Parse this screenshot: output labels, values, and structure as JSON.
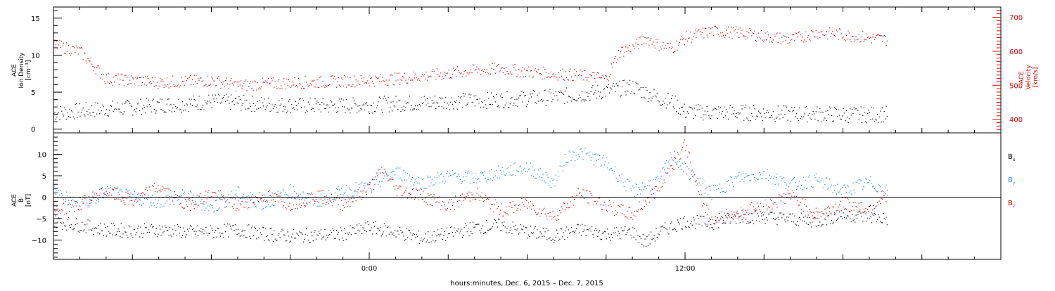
{
  "chart_data": [
    {
      "type": "scatter",
      "panel": "top",
      "left_axis": {
        "label_lines": [
          "ACE",
          "Ion Density",
          "[cm⁻³]"
        ],
        "ylim": [
          -0.5,
          16.5
        ],
        "ticks": [
          0,
          5,
          10,
          15
        ],
        "tick_labels": [
          "0",
          "5",
          "10",
          "15"
        ],
        "color": "#000000"
      },
      "right_axis": {
        "label_lines": [
          "ACE",
          "Velocity",
          "[km/s]"
        ],
        "ylim": [
          360,
          730
        ],
        "ticks": [
          400,
          500,
          600,
          700
        ],
        "tick_labels": [
          "400",
          "500",
          "600",
          "700"
        ],
        "color": "#dd0000"
      },
      "series": [
        {
          "axis": "left",
          "color": "#000000",
          "values": [
            [
              -12.0,
              2.2
            ],
            [
              -11.0,
              2.5
            ],
            [
              -10.0,
              2.8
            ],
            [
              -9.0,
              3.0
            ],
            [
              -8.0,
              3.3
            ],
            [
              -7.0,
              3.5
            ],
            [
              -6.0,
              3.8
            ],
            [
              -5.0,
              3.6
            ],
            [
              -4.0,
              3.4
            ],
            [
              -3.0,
              3.3
            ],
            [
              -2.0,
              3.2
            ],
            [
              -1.0,
              3.2
            ],
            [
              0.0,
              3.3
            ],
            [
              1.0,
              3.5
            ],
            [
              2.0,
              3.6
            ],
            [
              3.0,
              3.8
            ],
            [
              4.0,
              3.9
            ],
            [
              5.0,
              4.0
            ],
            [
              6.0,
              4.2
            ],
            [
              7.0,
              4.4
            ],
            [
              8.0,
              4.7
            ],
            [
              9.0,
              5.2
            ],
            [
              10.0,
              5.8
            ],
            [
              10.5,
              5.0
            ],
            [
              11.0,
              4.2
            ],
            [
              11.5,
              3.8
            ],
            [
              12.0,
              2.4
            ],
            [
              13.0,
              2.3
            ],
            [
              14.0,
              2.3
            ],
            [
              15.0,
              2.2
            ],
            [
              16.0,
              2.1
            ],
            [
              17.0,
              2.1
            ],
            [
              18.0,
              2.0
            ],
            [
              19.0,
              2.0
            ],
            [
              19.7,
              2.1
            ]
          ]
        },
        {
          "axis": "right",
          "color": "#dd0000",
          "values": [
            [
              -12.0,
              620
            ],
            [
              -11.0,
              600
            ],
            [
              -10.0,
              520
            ],
            [
              -9.0,
              515
            ],
            [
              -8.0,
              510
            ],
            [
              -7.0,
              512
            ],
            [
              -6.0,
              515
            ],
            [
              -5.0,
              500
            ],
            [
              -4.0,
              505
            ],
            [
              -3.0,
              508
            ],
            [
              -2.0,
              510
            ],
            [
              -1.0,
              513
            ],
            [
              0.0,
              515
            ],
            [
              1.0,
              520
            ],
            [
              2.0,
              528
            ],
            [
              3.0,
              535
            ],
            [
              4.0,
              545
            ],
            [
              5.0,
              550
            ],
            [
              6.0,
              540
            ],
            [
              7.0,
              535
            ],
            [
              8.0,
              530
            ],
            [
              9.0,
              520
            ],
            [
              9.5,
              600
            ],
            [
              10.0,
              610
            ],
            [
              10.5,
              640
            ],
            [
              11.0,
              620
            ],
            [
              11.5,
              610
            ],
            [
              12.0,
              640
            ],
            [
              13.0,
              660
            ],
            [
              14.0,
              655
            ],
            [
              15.0,
              645
            ],
            [
              16.0,
              635
            ],
            [
              17.0,
              655
            ],
            [
              18.0,
              650
            ],
            [
              19.0,
              640
            ],
            [
              19.7,
              635
            ]
          ]
        }
      ]
    },
    {
      "type": "scatter",
      "panel": "bottom",
      "left_axis": {
        "label_lines": [
          "ACE",
          "B",
          "[nT]"
        ],
        "ylim": [
          -14.5,
          15
        ],
        "ticks": [
          -10,
          -5,
          0,
          5,
          10
        ],
        "tick_labels": [
          "−10",
          "−5",
          "0",
          "5",
          "10"
        ],
        "color": "#000000"
      },
      "zero_line": true,
      "legend_position": "right",
      "series": [
        {
          "name": "B",
          "subscript": "x",
          "color": "#000000",
          "values": [
            [
              -12.0,
              -5.5
            ],
            [
              -11.0,
              -6.5
            ],
            [
              -10.0,
              -7.5
            ],
            [
              -9.0,
              -7.8
            ],
            [
              -8.0,
              -7.5
            ],
            [
              -7.0,
              -8.0
            ],
            [
              -6.0,
              -8.0
            ],
            [
              -5.0,
              -7.5
            ],
            [
              -4.0,
              -8.5
            ],
            [
              -3.0,
              -9.0
            ],
            [
              -2.0,
              -8.8
            ],
            [
              -1.0,
              -8.5
            ],
            [
              0.0,
              -7.0
            ],
            [
              1.0,
              -8.0
            ],
            [
              2.0,
              -9.5
            ],
            [
              3.0,
              -8.5
            ],
            [
              4.0,
              -7.0
            ],
            [
              5.0,
              -6.5
            ],
            [
              6.0,
              -8.0
            ],
            [
              7.0,
              -9.0
            ],
            [
              8.0,
              -7.5
            ],
            [
              9.0,
              -8.5
            ],
            [
              10.0,
              -8.0
            ],
            [
              10.5,
              -10.5
            ],
            [
              11.0,
              -8.0
            ],
            [
              12.0,
              -5.5
            ],
            [
              13.0,
              -6.0
            ],
            [
              14.0,
              -4.5
            ],
            [
              15.0,
              -4.5
            ],
            [
              16.0,
              -5.0
            ],
            [
              17.0,
              -5.5
            ],
            [
              18.0,
              -4.0
            ],
            [
              19.0,
              -4.5
            ],
            [
              19.7,
              -5.0
            ]
          ]
        },
        {
          "name": "B",
          "subscript": "y",
          "color": "#1e88e5",
          "values": [
            [
              -12.0,
              1.5
            ],
            [
              -11.0,
              -2.0
            ],
            [
              -10.0,
              1.5
            ],
            [
              -9.0,
              0.0
            ],
            [
              -8.0,
              -1.0
            ],
            [
              -7.0,
              0.5
            ],
            [
              -6.0,
              -2.5
            ],
            [
              -5.0,
              1.0
            ],
            [
              -4.0,
              -1.5
            ],
            [
              -3.0,
              1.5
            ],
            [
              -2.0,
              -1.0
            ],
            [
              -1.0,
              1.5
            ],
            [
              0.0,
              2.5
            ],
            [
              1.0,
              6.0
            ],
            [
              2.0,
              3.5
            ],
            [
              3.0,
              5.0
            ],
            [
              4.0,
              4.5
            ],
            [
              5.0,
              6.0
            ],
            [
              6.0,
              7.0
            ],
            [
              7.0,
              3.5
            ],
            [
              7.5,
              9.5
            ],
            [
              8.0,
              10.5
            ],
            [
              9.0,
              8.0
            ],
            [
              10.0,
              1.5
            ],
            [
              11.0,
              4.0
            ],
            [
              11.5,
              10.0
            ],
            [
              12.0,
              6.5
            ],
            [
              13.0,
              1.0
            ],
            [
              14.0,
              4.5
            ],
            [
              15.0,
              5.5
            ],
            [
              16.0,
              3.0
            ],
            [
              17.0,
              4.0
            ],
            [
              18.0,
              1.5
            ],
            [
              19.0,
              3.5
            ],
            [
              19.7,
              1.5
            ]
          ]
        },
        {
          "name": "B",
          "subscript": "z",
          "color": "#dd0000",
          "values": [
            [
              -12.0,
              -3.0
            ],
            [
              -11.0,
              -1.5
            ],
            [
              -10.0,
              1.5
            ],
            [
              -9.0,
              -1.0
            ],
            [
              -8.0,
              2.5
            ],
            [
              -7.0,
              -2.0
            ],
            [
              -6.0,
              1.0
            ],
            [
              -5.0,
              -2.0
            ],
            [
              -4.0,
              0.5
            ],
            [
              -3.0,
              -1.5
            ],
            [
              -2.0,
              0.5
            ],
            [
              -1.0,
              -1.5
            ],
            [
              0.0,
              2.0
            ],
            [
              0.5,
              6.5
            ],
            [
              1.0,
              2.0
            ],
            [
              2.0,
              0.5
            ],
            [
              3.0,
              -2.0
            ],
            [
              4.0,
              1.0
            ],
            [
              5.0,
              -3.0
            ],
            [
              6.0,
              -1.5
            ],
            [
              7.0,
              -4.5
            ],
            [
              8.0,
              1.0
            ],
            [
              9.0,
              -2.0
            ],
            [
              10.0,
              -4.0
            ],
            [
              11.0,
              2.5
            ],
            [
              12.0,
              12.5
            ],
            [
              12.5,
              1.0
            ],
            [
              13.0,
              -5.0
            ],
            [
              14.0,
              -3.5
            ],
            [
              15.0,
              -2.0
            ],
            [
              16.0,
              0.5
            ],
            [
              17.0,
              -4.0
            ],
            [
              18.0,
              -1.5
            ],
            [
              19.0,
              -2.5
            ],
            [
              19.7,
              1.0
            ]
          ]
        }
      ]
    }
  ],
  "x_axis": {
    "xlim": [
      -12,
      24
    ],
    "tick_labels": [
      {
        "x": 0,
        "label": "0:00"
      },
      {
        "x": 12,
        "label": "12:00"
      }
    ],
    "title": "hours:minutes, Dec.  6, 2015 – Dec.  7, 2015"
  }
}
